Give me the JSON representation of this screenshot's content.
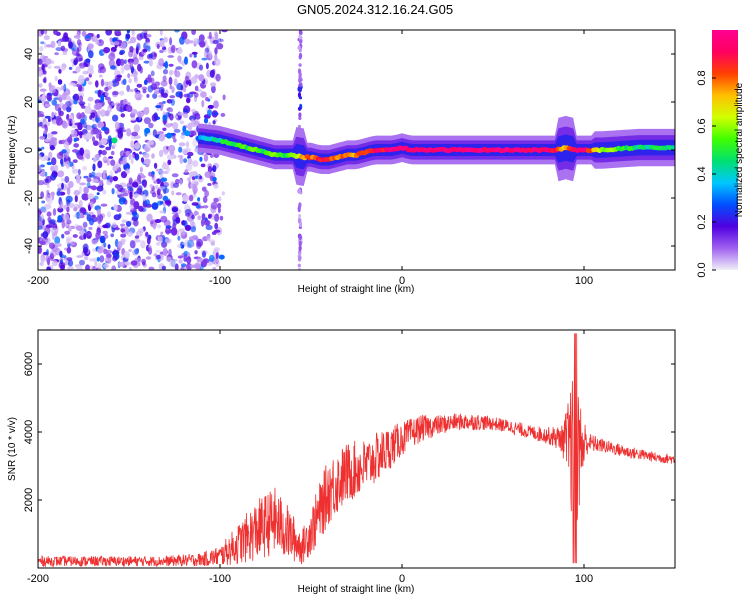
{
  "title": "GN05.2024.312.16.24.G05",
  "chart_data": [
    {
      "type": "heatmap",
      "name": "spectrogram",
      "xlabel": "Height of straight line (km)",
      "ylabel": "Frequency (Hz)",
      "xlim": [
        -200,
        150
      ],
      "ylim": [
        -50,
        50
      ],
      "xticks": [
        -200,
        -100,
        0,
        100
      ],
      "xtick_labels": [
        "-200",
        "-100",
        "0",
        "100"
      ],
      "yticks": [
        -40,
        -20,
        0,
        20,
        40
      ],
      "ytick_labels": [
        "-40",
        "-20",
        "0",
        "20",
        "40"
      ],
      "colorbar": {
        "label": "Normalized spectral amplitude",
        "range": [
          0,
          1
        ],
        "ticks": [
          0.0,
          0.2,
          0.4,
          0.6,
          0.8
        ],
        "tick_labels": [
          "0.0",
          "0.2",
          "0.4",
          "0.6",
          "0.8"
        ],
        "colors": [
          "#f0f0f8",
          "#a060f0",
          "#5000e0",
          "#0050ff",
          "#00c8ff",
          "#00e070",
          "#40ff00",
          "#d0ff00",
          "#ffc000",
          "#ff4000",
          "#ff0060",
          "#ff0090"
        ]
      },
      "noise_region_x": [
        -200,
        -100
      ],
      "spike_x": -56,
      "ridge": [
        {
          "x": -110,
          "f": 5,
          "a": 0.3
        },
        {
          "x": -100,
          "f": 4,
          "a": 0.45
        },
        {
          "x": -95,
          "f": 3,
          "a": 0.5
        },
        {
          "x": -90,
          "f": 2,
          "a": 0.55
        },
        {
          "x": -85,
          "f": 1,
          "a": 0.5
        },
        {
          "x": -80,
          "f": 0,
          "a": 0.55
        },
        {
          "x": -75,
          "f": -1,
          "a": 0.5
        },
        {
          "x": -70,
          "f": -2,
          "a": 0.55
        },
        {
          "x": -65,
          "f": -2,
          "a": 0.5
        },
        {
          "x": -60,
          "f": -2,
          "a": 0.55
        },
        {
          "x": -55,
          "f": -3,
          "a": 0.75
        },
        {
          "x": -50,
          "f": -3,
          "a": 0.8
        },
        {
          "x": -45,
          "f": -4,
          "a": 0.85
        },
        {
          "x": -40,
          "f": -4,
          "a": 0.85
        },
        {
          "x": -35,
          "f": -3,
          "a": 0.75
        },
        {
          "x": -30,
          "f": -2,
          "a": 0.8
        },
        {
          "x": -25,
          "f": -2,
          "a": 0.75
        },
        {
          "x": -20,
          "f": -1,
          "a": 0.85
        },
        {
          "x": -15,
          "f": 0,
          "a": 0.9
        },
        {
          "x": -10,
          "f": 0,
          "a": 0.9
        },
        {
          "x": -5,
          "f": 0,
          "a": 0.95
        },
        {
          "x": 0,
          "f": 1,
          "a": 0.95
        },
        {
          "x": 5,
          "f": 0,
          "a": 0.95
        },
        {
          "x": 20,
          "f": 0,
          "a": 0.95
        },
        {
          "x": 40,
          "f": 0,
          "a": 0.95
        },
        {
          "x": 60,
          "f": 0,
          "a": 0.95
        },
        {
          "x": 80,
          "f": 0,
          "a": 0.95
        },
        {
          "x": 85,
          "f": 0,
          "a": 0.9
        },
        {
          "x": 90,
          "f": 1,
          "a": 0.7
        },
        {
          "x": 95,
          "f": 0,
          "a": 0.9
        },
        {
          "x": 100,
          "f": 0,
          "a": 0.95
        },
        {
          "x": 110,
          "f": 0,
          "a": 0.6
        },
        {
          "x": 130,
          "f": 1,
          "a": 0.45
        },
        {
          "x": 150,
          "f": 1,
          "a": 0.45
        }
      ]
    },
    {
      "type": "line",
      "name": "snr",
      "xlabel": "Height of straight line (km)",
      "ylabel": "SNR (10 * v/v)",
      "xlim": [
        -200,
        150
      ],
      "ylim": [
        0,
        7000
      ],
      "xticks": [
        -200,
        -100,
        0,
        100
      ],
      "xtick_labels": [
        "-200",
        "-100",
        "0",
        "100"
      ],
      "yticks": [
        2000,
        4000,
        6000
      ],
      "ytick_labels": [
        "2000",
        "4000",
        "6000"
      ],
      "color": "#ee3030",
      "envelope": [
        {
          "x": -200,
          "mean": 200,
          "amp": 150
        },
        {
          "x": -130,
          "mean": 200,
          "amp": 150
        },
        {
          "x": -110,
          "mean": 250,
          "amp": 200
        },
        {
          "x": -100,
          "mean": 350,
          "amp": 300
        },
        {
          "x": -90,
          "mean": 700,
          "amp": 600
        },
        {
          "x": -80,
          "mean": 1100,
          "amp": 900
        },
        {
          "x": -70,
          "mean": 1400,
          "amp": 1000
        },
        {
          "x": -62,
          "mean": 1000,
          "amp": 800
        },
        {
          "x": -55,
          "mean": 600,
          "amp": 500
        },
        {
          "x": -48,
          "mean": 1300,
          "amp": 800
        },
        {
          "x": -40,
          "mean": 2300,
          "amp": 1000
        },
        {
          "x": -30,
          "mean": 2800,
          "amp": 900
        },
        {
          "x": -20,
          "mean": 3000,
          "amp": 800
        },
        {
          "x": -10,
          "mean": 3400,
          "amp": 700
        },
        {
          "x": 0,
          "mean": 3800,
          "amp": 500
        },
        {
          "x": 10,
          "mean": 4100,
          "amp": 400
        },
        {
          "x": 20,
          "mean": 4200,
          "amp": 300
        },
        {
          "x": 30,
          "mean": 4300,
          "amp": 250
        },
        {
          "x": 40,
          "mean": 4300,
          "amp": 250
        },
        {
          "x": 50,
          "mean": 4250,
          "amp": 200
        },
        {
          "x": 60,
          "mean": 4150,
          "amp": 200
        },
        {
          "x": 70,
          "mean": 4000,
          "amp": 200
        },
        {
          "x": 80,
          "mean": 3900,
          "amp": 250
        },
        {
          "x": 88,
          "mean": 3800,
          "amp": 400
        },
        {
          "x": 92,
          "mean": 3600,
          "amp": 1500
        },
        {
          "x": 95,
          "mean": 3500,
          "amp": 3000
        },
        {
          "x": 98,
          "mean": 3500,
          "amp": 1500
        },
        {
          "x": 102,
          "mean": 3700,
          "amp": 300
        },
        {
          "x": 110,
          "mean": 3600,
          "amp": 200
        },
        {
          "x": 125,
          "mean": 3400,
          "amp": 180
        },
        {
          "x": 140,
          "mean": 3250,
          "amp": 150
        },
        {
          "x": 150,
          "mean": 3200,
          "amp": 150
        }
      ]
    }
  ]
}
